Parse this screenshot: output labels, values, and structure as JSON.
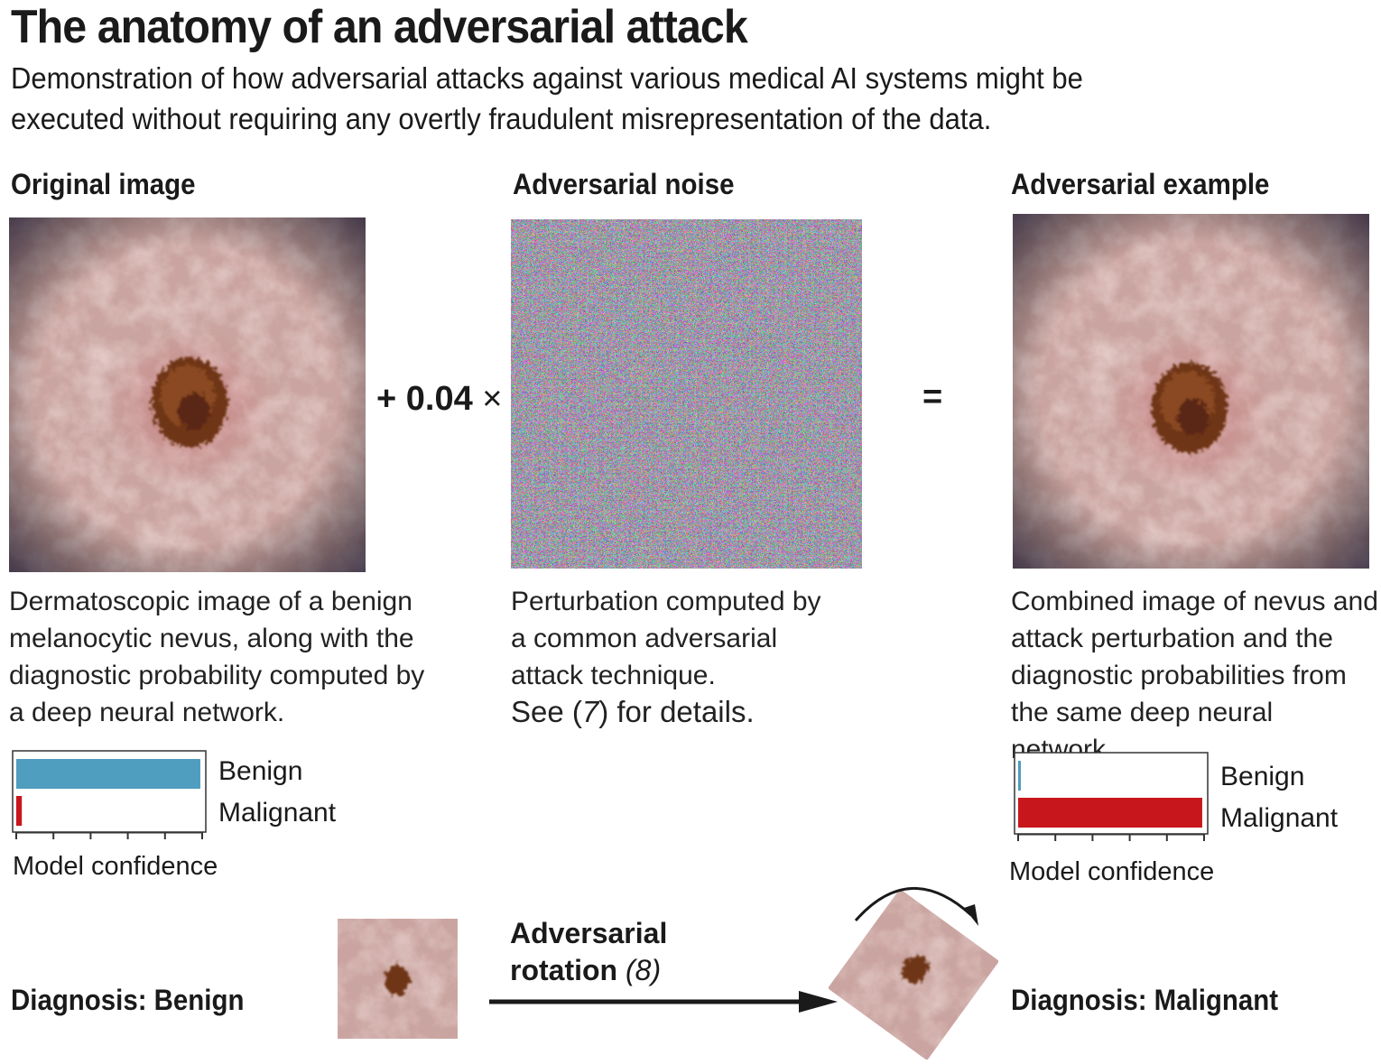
{
  "title": "The anatomy of an adversarial attack",
  "subtitle": "Demonstration of how adversarial attacks against various medical AI systems might be executed without requiring any overtly fraudulent misrepresentation of the data.",
  "panels": {
    "original": {
      "heading": "Original image",
      "caption": "Dermatoscopic image of a benign melanocytic nevus, along with the diagnostic probability computed by a deep neural network."
    },
    "noise": {
      "heading": "Adversarial noise",
      "caption": "Perturbation computed by a common adversarial attack technique.",
      "see_prefix": "See (",
      "see_ref": "7",
      "see_suffix": ") for details."
    },
    "example": {
      "heading": "Adversarial example",
      "caption": "Combined image of nevus and attack perturbation and the diagnostic probabilities from the same deep neural network."
    }
  },
  "operators": {
    "plus": "+ 0.04",
    "times": "×",
    "equals": "="
  },
  "chart_data": [
    {
      "type": "bar",
      "orientation": "horizontal",
      "categories": [
        "Benign",
        "Malignant"
      ],
      "values": [
        0.99,
        0.03
      ],
      "xlabel": "Model confidence",
      "xlim": [
        0,
        1
      ],
      "colors": [
        "#4f9dbf",
        "#c8161d"
      ]
    },
    {
      "type": "bar",
      "orientation": "horizontal",
      "categories": [
        "Benign",
        "Malignant"
      ],
      "values": [
        0.01,
        0.99
      ],
      "xlabel": "Model confidence",
      "xlim": [
        0,
        1
      ],
      "colors": [
        "#4f9dbf",
        "#c8161d"
      ]
    }
  ],
  "rotation": {
    "label_line1": "Adversarial",
    "label_line2": "rotation",
    "ref": "8",
    "diagnosis_before": "Diagnosis: Benign",
    "diagnosis_after": "Diagnosis: Malignant"
  }
}
